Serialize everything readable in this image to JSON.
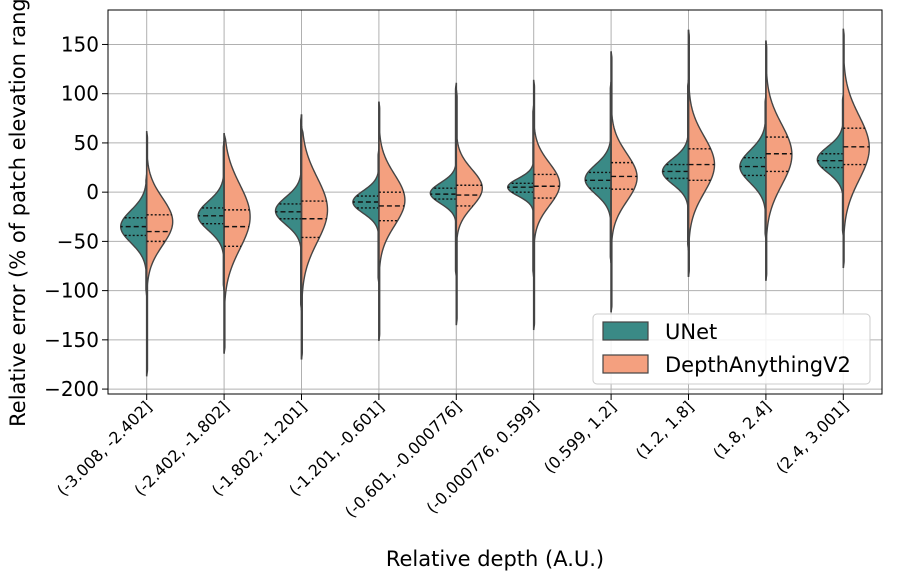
{
  "chart_data": {
    "type": "violin",
    "title": "",
    "xlabel": "Relative depth (A.U.)",
    "ylabel": "Relative error (% of patch elevation range)",
    "ylim": [
      -205,
      185
    ],
    "yticks": [
      150,
      100,
      50,
      0,
      -50,
      -100,
      -150,
      -200
    ],
    "grid": true,
    "legend_position": "lower-right",
    "categories": [
      "(-3.008, -2.402]",
      "(-2.402, -1.802]",
      "(-1.802, -1.201]",
      "(-1.201, -0.601]",
      "(-0.601, -0.000776]",
      "(-0.000776, 0.599]",
      "(0.599, 1.2]",
      "(1.2, 1.8]",
      "(1.8, 2.4]",
      "(2.4, 3.001]"
    ],
    "series": [
      {
        "name": "UNet",
        "color": "#3a8a86",
        "side": "left",
        "stats": [
          {
            "min": -105,
            "max": 18,
            "q1": -44,
            "median": -35,
            "q3": -26,
            "mode": -35
          },
          {
            "min": -100,
            "max": 52,
            "q1": -32,
            "median": -24,
            "q3": -16,
            "mode": -24
          },
          {
            "min": -120,
            "max": 79,
            "q1": -27,
            "median": -20,
            "q3": -12,
            "mode": -19
          },
          {
            "min": -93,
            "max": 44,
            "q1": -16,
            "median": -10,
            "q3": -4,
            "mode": -10
          },
          {
            "min": -86,
            "max": 111,
            "q1": -7,
            "median": -2,
            "q3": 4,
            "mode": -1
          },
          {
            "min": -86,
            "max": 88,
            "q1": 0,
            "median": 5,
            "q3": 9,
            "mode": 5
          },
          {
            "min": -72,
            "max": 112,
            "q1": 4,
            "median": 12,
            "q3": 20,
            "mode": 13
          },
          {
            "min": -59,
            "max": 114,
            "q1": 14,
            "median": 21,
            "q3": 28,
            "mode": 21
          },
          {
            "min": -48,
            "max": 98,
            "q1": 17,
            "median": 26,
            "q3": 35,
            "mode": 26
          },
          {
            "min": -45,
            "max": 100,
            "q1": 25,
            "median": 32,
            "q3": 39,
            "mode": 33
          }
        ]
      },
      {
        "name": "DepthAnythingV2",
        "color": "#f4a07f",
        "side": "right",
        "stats": [
          {
            "min": -187,
            "max": 62,
            "q1": -50,
            "median": -40,
            "q3": -23,
            "mode": -30
          },
          {
            "min": -164,
            "max": 60,
            "q1": -55,
            "median": -35,
            "q3": -18,
            "mode": -25
          },
          {
            "min": -170,
            "max": 67,
            "q1": -46,
            "median": -27,
            "q3": -9,
            "mode": -18
          },
          {
            "min": -151,
            "max": 92,
            "q1": -29,
            "median": -14,
            "q3": 0,
            "mode": -8
          },
          {
            "min": -135,
            "max": 104,
            "q1": -14,
            "median": -3,
            "q3": 7,
            "mode": 4
          },
          {
            "min": -140,
            "max": 114,
            "q1": -6,
            "median": 6,
            "q3": 18,
            "mode": 8
          },
          {
            "min": -122,
            "max": 143,
            "q1": 3,
            "median": 16,
            "q3": 30,
            "mode": 15
          },
          {
            "min": -86,
            "max": 165,
            "q1": 12,
            "median": 28,
            "q3": 44,
            "mode": 28
          },
          {
            "min": -90,
            "max": 154,
            "q1": 21,
            "median": 39,
            "q3": 56,
            "mode": 38
          },
          {
            "min": -77,
            "max": 166,
            "q1": 28,
            "median": 46,
            "q3": 65,
            "mode": 45
          }
        ]
      }
    ]
  }
}
